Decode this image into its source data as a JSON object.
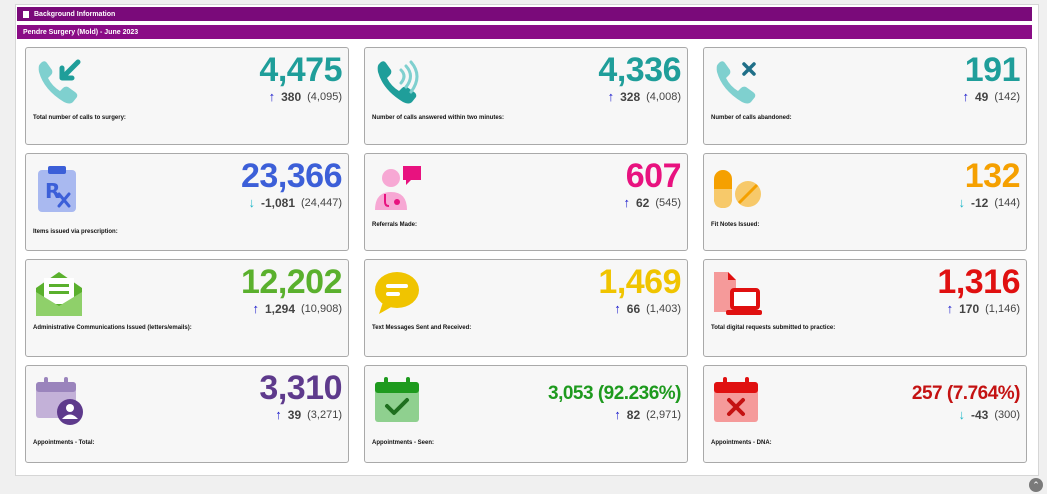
{
  "header": {
    "section_title": "Background Information",
    "practice_title": "Pendre Surgery (Mold) - June 2023"
  },
  "colors": {
    "purple_bar": "#8a0c86",
    "teal": "#1f9e9a",
    "royal_blue": "#3c5fd8",
    "magenta": "#e8127f",
    "orange": "#f5a000",
    "green": "#5ab02d",
    "yellow": "#f0c400",
    "red": "#e01010",
    "violet": "#5e3a8c",
    "dark_green": "#1e9a1e",
    "dark_red": "#c41212"
  },
  "cards": [
    {
      "icon": "phone-incoming-icon",
      "value": "4,475",
      "change": "380",
      "prev": "(4,095)",
      "dir": "up",
      "label": "Total number of calls to surgery:"
    },
    {
      "icon": "phone-ringing-icon",
      "value": "4,336",
      "change": "328",
      "prev": "(4,008)",
      "dir": "up",
      "label": "Number of calls answered within two minutes:"
    },
    {
      "icon": "phone-abandoned-icon",
      "value": "191",
      "change": "49",
      "prev": "(142)",
      "dir": "up",
      "label": "Number of calls abandoned:"
    },
    {
      "icon": "prescription-clipboard-icon",
      "value": "23,366",
      "change": "-1,081",
      "prev": "(24,447)",
      "dir": "down",
      "label": "Items issued via prescription:"
    },
    {
      "icon": "doctor-referral-icon",
      "value": "607",
      "change": "62",
      "prev": "(545)",
      "dir": "up",
      "label": "Referrals Made:"
    },
    {
      "icon": "pills-icon",
      "value": "132",
      "change": "-12",
      "prev": "(144)",
      "dir": "down",
      "label": "Fit Notes Issued:"
    },
    {
      "icon": "envelope-letter-icon",
      "value": "12,202",
      "change": "1,294",
      "prev": "(10,908)",
      "dir": "up",
      "label": "Administrative Communications Issued (letters/emails):"
    },
    {
      "icon": "chat-bubble-icon",
      "value": "1,469",
      "change": "66",
      "prev": "(1,403)",
      "dir": "up",
      "label": "Text Messages Sent and Received:"
    },
    {
      "icon": "digital-request-icon",
      "value": "1,316",
      "change": "170",
      "prev": "(1,146)",
      "dir": "up",
      "label": "Total digital requests submitted to practice:"
    },
    {
      "icon": "calendar-user-icon",
      "value": "3,310",
      "change": "39",
      "prev": "(3,271)",
      "dir": "up",
      "label": "Appointments - Total:"
    },
    {
      "icon": "calendar-check-icon",
      "value": "3,053",
      "pct": "(92.236%)",
      "change": "82",
      "prev": "(2,971)",
      "dir": "up",
      "label": "Appointments - Seen:"
    },
    {
      "icon": "calendar-cross-icon",
      "value": "257",
      "pct": "(7.764%)",
      "change": "-43",
      "prev": "(300)",
      "dir": "down",
      "label": "Appointments - DNA:"
    }
  ],
  "arrows": {
    "up": "↑",
    "down": "↓"
  },
  "scroll_top_glyph": "⌃"
}
